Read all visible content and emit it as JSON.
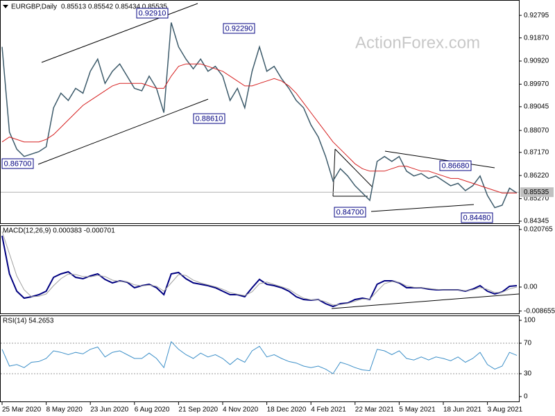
{
  "chart_data": [
    {
      "type": "line",
      "title": "EURGBP,Daily",
      "subtitle": "0.85513 0.85542 0.85434 0.85535",
      "watermark": "ActionForex.com",
      "categories": [
        "25 Mar 2020",
        null,
        null,
        null,
        null,
        null,
        "8 May 2020",
        null,
        null,
        null,
        null,
        null,
        "23 Jun 2020",
        null,
        null,
        null,
        null,
        null,
        "6 Aug 2020",
        null,
        null,
        null,
        null,
        null,
        "21 Sep 2020",
        null,
        null,
        null,
        null,
        null,
        "4 Nov 2020",
        null,
        null,
        null,
        null,
        null,
        "18 Dec 2020",
        null,
        null,
        null,
        null,
        null,
        "4 Feb 2021",
        null,
        null,
        null,
        null,
        null,
        "22 Mar 2021",
        null,
        null,
        null,
        null,
        null,
        "5 May 2021",
        null,
        null,
        null,
        null,
        null,
        "18 Jun 2021",
        null,
        null,
        null,
        null,
        null,
        "3 Aug 2021",
        null,
        null,
        null,
        null
      ],
      "series": [
        {
          "color": "#3c5a6a",
          "values": [
            0.915,
            0.88,
            0.873,
            0.87,
            0.871,
            0.872,
            0.874,
            0.89,
            0.896,
            0.893,
            0.898,
            0.896,
            0.905,
            0.91,
            0.9,
            0.905,
            0.908,
            0.903,
            0.898,
            0.897,
            0.903,
            0.898,
            0.888,
            0.925,
            0.915,
            0.91,
            0.906,
            0.91,
            0.905,
            0.907,
            0.903,
            0.893,
            0.898,
            0.89,
            0.905,
            0.915,
            0.905,
            0.907,
            0.902,
            0.898,
            0.893,
            0.89,
            0.883,
            0.878,
            0.87,
            0.86,
            0.865,
            0.862,
            0.858,
            0.855,
            0.852,
            0.868,
            0.87,
            0.868,
            0.87,
            0.864,
            0.862,
            0.863,
            0.861,
            0.862,
            0.86,
            0.858,
            0.859,
            0.856,
            0.858,
            0.862,
            0.854,
            0.849,
            0.85,
            0.857,
            0.855
          ]
        },
        {
          "color": "#d62020",
          "values": [
            0.876,
            0.878,
            0.877,
            0.876,
            0.876,
            0.876,
            0.877,
            0.879,
            0.882,
            0.885,
            0.888,
            0.891,
            0.893,
            0.895,
            0.897,
            0.899,
            0.9,
            0.9,
            0.9,
            0.9,
            0.899,
            0.898,
            0.898,
            0.903,
            0.907,
            0.908,
            0.908,
            0.908,
            0.907,
            0.906,
            0.905,
            0.903,
            0.901,
            0.899,
            0.899,
            0.9,
            0.901,
            0.902,
            0.901,
            0.899,
            0.896,
            0.892,
            0.888,
            0.884,
            0.88,
            0.876,
            0.873,
            0.87,
            0.867,
            0.865,
            0.864,
            0.864,
            0.864,
            0.865,
            0.866,
            0.866,
            0.865,
            0.864,
            0.864,
            0.863,
            0.862,
            0.861,
            0.861,
            0.86,
            0.859,
            0.858,
            0.857,
            0.856,
            0.855,
            0.855,
            0.855
          ]
        }
      ],
      "ylim": [
        0.8426,
        0.9334
      ],
      "yticks": [
        0.92795,
        {
          "value": 0.9187,
          "label": "0.91870"
        },
        {
          "value": 0.9092,
          "label": "0.90920"
        },
        {
          "value": 0.8997,
          "label": "0.89970"
        },
        0.89045,
        {
          "value": 0.8807,
          "label": "0.88070"
        },
        {
          "value": 0.8717,
          "label": "0.87170"
        },
        {
          "value": 0.8622,
          "label": "0.86220"
        },
        {
          "value": 0.8527,
          "label": "0.85270"
        },
        0.84345
      ],
      "last_price": 0.85535,
      "annotations": [
        "0.92910",
        "0.92290",
        "0.88610",
        "0.86700",
        "0.86680",
        "0.84700",
        "0.84480"
      ]
    },
    {
      "type": "line",
      "title": "MACD(12,26,9) 0.000383 -0.000701",
      "series": [
        {
          "color": "#000080",
          "values": [
            0.0185,
            0.00475,
            -0.0015,
            -0.004,
            -0.0035,
            -0.00275,
            -0.0015,
            0.0035,
            0.00475,
            0.0055,
            0.0035,
            0.003,
            0.004,
            0.00475,
            0.00275,
            0.0015,
            0.00225,
            0.00175,
            -0.00025,
            0.0005,
            0.001,
            -0.00025,
            -0.00275,
            0.00475,
            0.00525,
            0.003,
            0.0015,
            0.001,
            0.0005,
            -0.00025,
            -0.0015,
            -0.00275,
            -0.00275,
            -0.0035,
            -0.00025,
            0.00275,
            0.001,
            0.0005,
            -0.00025,
            -0.0015,
            -0.0035,
            -0.0045,
            -0.00475,
            -0.0045,
            -0.006,
            -0.007,
            -0.006,
            -0.00575,
            -0.0045,
            -0.004,
            -0.0045,
            0.001,
            0.00225,
            0.00225,
            0.0015,
            -0.00025,
            -0.00025,
            -0.00025,
            -0.00075,
            -0.001,
            -0.001,
            -0.001,
            -0.001,
            -0.0015,
            -0.00075,
            0.0005,
            -0.0015,
            -0.0025,
            -0.00175,
            0.00025,
            0.0005
          ]
        },
        {
          "color": "#a0a0a0",
          "values": [
            0.02,
            0.012,
            0.004,
            -0.001,
            -0.0035,
            -0.0033,
            -0.0025,
            0.0005,
            0.003,
            0.0047,
            0.0045,
            0.0038,
            0.0037,
            0.0042,
            0.0038,
            0.0025,
            0.002,
            0.0019,
            0.0008,
            0.0004,
            0.0007,
            0.0003,
            -0.0015,
            0.0015,
            0.0045,
            0.0042,
            0.0025,
            0.0015,
            0.0008,
            0.0001,
            -0.0008,
            -0.002,
            -0.0026,
            -0.0031,
            -0.0017,
            0.0012,
            0.0018,
            0.0009,
            0.0001,
            -0.0008,
            -0.0025,
            -0.004,
            -0.0046,
            -0.0046,
            -0.0053,
            -0.0065,
            -0.0063,
            -0.0059,
            -0.0051,
            -0.0043,
            -0.0044,
            -0.0015,
            0.0012,
            0.002,
            0.0017,
            0.0004,
            -0.0001,
            -0.0002,
            -0.0005,
            -0.0008,
            -0.001,
            -0.001,
            -0.001,
            -0.0013,
            -0.001,
            -0.0002,
            -0.0008,
            -0.002,
            -0.0019,
            -0.0007,
            0
          ]
        }
      ],
      "ylim": [
        -0.00975,
        0.022
      ],
      "yticks": [
        0.020765,
        {
          "value": 0,
          "label": "0.00"
        },
        -0.008655
      ]
    },
    {
      "type": "line",
      "title": "RSI(14) 54.2653",
      "series": [
        {
          "color": "#3c8fc8",
          "values": [
            62,
            40,
            42,
            38,
            45,
            46,
            50,
            60,
            58,
            55,
            58,
            56,
            62,
            65,
            52,
            58,
            60,
            55,
            50,
            50,
            57,
            50,
            38,
            72,
            62,
            55,
            50,
            57,
            52,
            55,
            50,
            42,
            50,
            45,
            60,
            66,
            52,
            55,
            50,
            46,
            44,
            40,
            38,
            40,
            36,
            30,
            45,
            42,
            38,
            35,
            34,
            62,
            60,
            55,
            60,
            50,
            48,
            52,
            48,
            52,
            50,
            47,
            52,
            45,
            50,
            58,
            42,
            36,
            40,
            58,
            54
          ]
        }
      ],
      "ylim": [
        -7.3,
        106.4
      ],
      "yticks": [
        100,
        70,
        30,
        0
      ],
      "levels": [
        70,
        30
      ]
    }
  ]
}
